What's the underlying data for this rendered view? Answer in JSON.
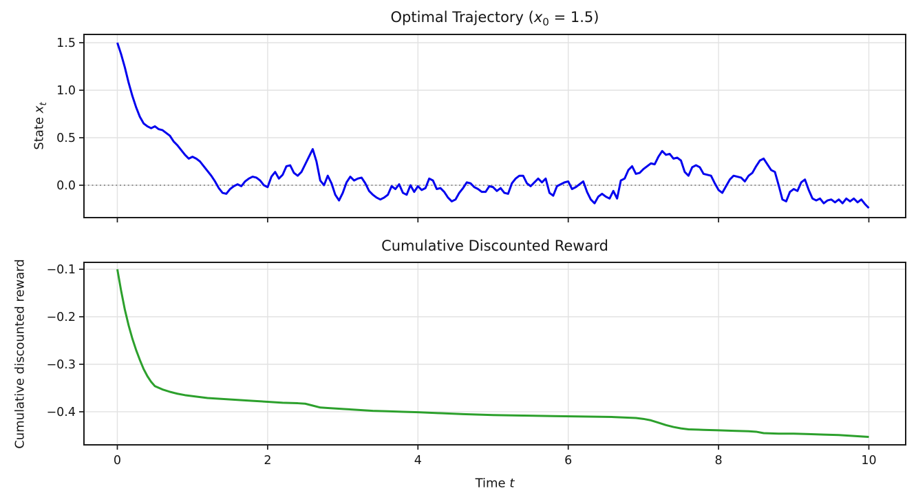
{
  "figure": {
    "background": "#ffffff",
    "text_color": "#151515",
    "grid_color": "#e2e2e2",
    "spine_color": "#1a1a1a"
  },
  "chart_data": [
    {
      "type": "line",
      "title": "Optimal Trajectory (x₀ = 1.5)",
      "title_parts": {
        "prefix": "Optimal Trajectory (",
        "var": "x",
        "sub": "0",
        "suffix": " = 1.5)"
      },
      "ylabel": "State xₜ",
      "ylabel_parts": {
        "prefix": "State ",
        "var": "x",
        "sub": "t"
      },
      "xlabel": "",
      "xlim": [
        -0.444,
        10.49
      ],
      "ylim": [
        -0.3406,
        1.587
      ],
      "grid": true,
      "legend": "none",
      "xticks": {
        "values": [
          0,
          2,
          4,
          6,
          8,
          10
        ],
        "labels": [
          "0",
          "2",
          "4",
          "6",
          "8",
          "10"
        ],
        "labels_visible": false
      },
      "yticks": {
        "values": [
          0.0,
          0.5,
          1.0,
          1.5
        ],
        "labels": [
          "0.0",
          "0.5",
          "1.0",
          "1.5"
        ]
      },
      "ref_line": {
        "y": 0.0,
        "style": "dotted",
        "color": "#808080"
      },
      "series": [
        {
          "name": "state-trajectory",
          "color": "#0202ee",
          "linewidth": 3,
          "x_start": 0,
          "x_step": 0.05,
          "values": [
            1.5,
            1.38,
            1.24,
            1.08,
            0.94,
            0.82,
            0.72,
            0.65,
            0.62,
            0.6,
            0.62,
            0.59,
            0.58,
            0.55,
            0.52,
            0.46,
            0.42,
            0.37,
            0.32,
            0.28,
            0.3,
            0.28,
            0.25,
            0.2,
            0.15,
            0.1,
            0.04,
            -0.03,
            -0.08,
            -0.09,
            -0.04,
            -0.01,
            0.01,
            -0.01,
            0.04,
            0.07,
            0.09,
            0.08,
            0.05,
            0.0,
            -0.02,
            0.09,
            0.14,
            0.07,
            0.11,
            0.2,
            0.21,
            0.13,
            0.1,
            0.14,
            0.22,
            0.3,
            0.38,
            0.25,
            0.05,
            0.0,
            0.1,
            0.02,
            -0.1,
            -0.16,
            -0.08,
            0.03,
            0.09,
            0.05,
            0.07,
            0.08,
            0.02,
            -0.06,
            -0.1,
            -0.13,
            -0.15,
            -0.13,
            -0.1,
            -0.01,
            -0.04,
            0.01,
            -0.08,
            -0.1,
            0.0,
            -0.07,
            -0.01,
            -0.05,
            -0.03,
            0.07,
            0.05,
            -0.04,
            -0.03,
            -0.07,
            -0.13,
            -0.17,
            -0.15,
            -0.08,
            -0.03,
            0.03,
            0.02,
            -0.02,
            -0.04,
            -0.07,
            -0.07,
            -0.01,
            -0.02,
            -0.06,
            -0.03,
            -0.08,
            -0.09,
            0.02,
            0.07,
            0.1,
            0.1,
            0.02,
            -0.01,
            0.03,
            0.07,
            0.03,
            0.07,
            -0.08,
            -0.11,
            -0.01,
            0.01,
            0.03,
            0.04,
            -0.04,
            -0.02,
            0.01,
            0.04,
            -0.07,
            -0.15,
            -0.19,
            -0.12,
            -0.09,
            -0.12,
            -0.14,
            -0.06,
            -0.14,
            0.05,
            0.07,
            0.16,
            0.2,
            0.12,
            0.13,
            0.17,
            0.2,
            0.23,
            0.22,
            0.3,
            0.36,
            0.32,
            0.33,
            0.28,
            0.29,
            0.26,
            0.14,
            0.1,
            0.19,
            0.21,
            0.19,
            0.12,
            0.11,
            0.1,
            0.02,
            -0.05,
            -0.08,
            -0.01,
            0.06,
            0.1,
            0.09,
            0.08,
            0.04,
            0.1,
            0.13,
            0.2,
            0.26,
            0.28,
            0.22,
            0.16,
            0.14,
            0.0,
            -0.15,
            -0.17,
            -0.07,
            -0.04,
            -0.06,
            0.03,
            0.06,
            -0.05,
            -0.14,
            -0.16,
            -0.14,
            -0.19,
            -0.16,
            -0.15,
            -0.18,
            -0.15,
            -0.19,
            -0.14,
            -0.17,
            -0.14,
            -0.18,
            -0.15,
            -0.2,
            -0.24
          ]
        }
      ]
    },
    {
      "type": "line",
      "title": "Cumulative Discounted Reward",
      "xlabel": "Time t",
      "xlabel_parts": {
        "prefix": "Time ",
        "var": "t"
      },
      "ylabel": "Cumulative discounted reward",
      "xlim": [
        -0.444,
        10.49
      ],
      "ylim": [
        -0.4696,
        -0.0855
      ],
      "grid": true,
      "legend": "none",
      "xticks": {
        "values": [
          0,
          2,
          4,
          6,
          8,
          10
        ],
        "labels": [
          "0",
          "2",
          "4",
          "6",
          "8",
          "10"
        ],
        "labels_visible": true
      },
      "yticks": {
        "values": [
          -0.1,
          -0.2,
          -0.3,
          -0.4
        ],
        "labels": [
          "−0.1",
          "−0.2",
          "−0.3",
          "−0.4"
        ]
      },
      "series": [
        {
          "name": "cumulative-reward",
          "color": "#2ca02c",
          "linewidth": 3,
          "points": [
            [
              0.0,
              -0.1
            ],
            [
              0.05,
              -0.145
            ],
            [
              0.1,
              -0.185
            ],
            [
              0.15,
              -0.218
            ],
            [
              0.2,
              -0.246
            ],
            [
              0.25,
              -0.27
            ],
            [
              0.3,
              -0.291
            ],
            [
              0.35,
              -0.31
            ],
            [
              0.4,
              -0.325
            ],
            [
              0.45,
              -0.337
            ],
            [
              0.5,
              -0.346
            ],
            [
              0.6,
              -0.353
            ],
            [
              0.7,
              -0.358
            ],
            [
              0.8,
              -0.362
            ],
            [
              0.9,
              -0.365
            ],
            [
              1.0,
              -0.367
            ],
            [
              1.2,
              -0.371
            ],
            [
              1.4,
              -0.373
            ],
            [
              1.6,
              -0.375
            ],
            [
              1.8,
              -0.377
            ],
            [
              2.0,
              -0.379
            ],
            [
              2.2,
              -0.381
            ],
            [
              2.4,
              -0.382
            ],
            [
              2.5,
              -0.383
            ],
            [
              2.6,
              -0.387
            ],
            [
              2.7,
              -0.391
            ],
            [
              2.8,
              -0.392
            ],
            [
              3.0,
              -0.394
            ],
            [
              3.2,
              -0.396
            ],
            [
              3.4,
              -0.398
            ],
            [
              3.6,
              -0.399
            ],
            [
              3.8,
              -0.4
            ],
            [
              4.0,
              -0.401
            ],
            [
              4.3,
              -0.403
            ],
            [
              4.6,
              -0.405
            ],
            [
              5.0,
              -0.407
            ],
            [
              5.4,
              -0.408
            ],
            [
              5.8,
              -0.409
            ],
            [
              6.2,
              -0.41
            ],
            [
              6.6,
              -0.411
            ],
            [
              6.9,
              -0.413
            ],
            [
              7.0,
              -0.415
            ],
            [
              7.1,
              -0.418
            ],
            [
              7.2,
              -0.423
            ],
            [
              7.3,
              -0.428
            ],
            [
              7.4,
              -0.432
            ],
            [
              7.5,
              -0.435
            ],
            [
              7.6,
              -0.437
            ],
            [
              7.8,
              -0.438
            ],
            [
              8.0,
              -0.439
            ],
            [
              8.2,
              -0.44
            ],
            [
              8.4,
              -0.441
            ],
            [
              8.5,
              -0.442
            ],
            [
              8.6,
              -0.445
            ],
            [
              8.8,
              -0.446
            ],
            [
              9.0,
              -0.446
            ],
            [
              9.2,
              -0.447
            ],
            [
              9.4,
              -0.448
            ],
            [
              9.6,
              -0.449
            ],
            [
              9.8,
              -0.451
            ],
            [
              10.0,
              -0.453
            ]
          ]
        }
      ]
    }
  ]
}
